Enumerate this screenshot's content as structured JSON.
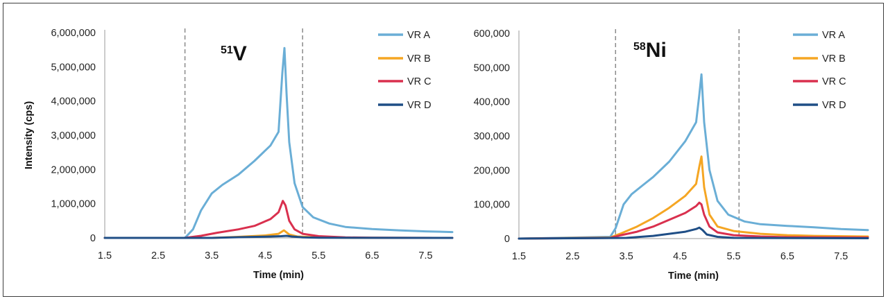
{
  "chart_data": [
    {
      "type": "line",
      "label": {
        "sup": "51",
        "base": "V"
      },
      "xlabel": "Time (min)",
      "ylabel": "Intensity (cps)",
      "xlim": [
        1.5,
        8.0
      ],
      "ylim": [
        0,
        6000000
      ],
      "x_ticks": [
        "1.5",
        "2.5",
        "3.5",
        "4.5",
        "5.5",
        "6.5",
        "7.5"
      ],
      "y_ticks": [
        "0",
        "1,000,000",
        "2,000,000",
        "3,000,000",
        "4,000,000",
        "5,000,000",
        "6,000,000"
      ],
      "dashed_lines_x": [
        3.0,
        5.2
      ],
      "legend_position": "top-right",
      "series": [
        {
          "name": "VR A",
          "color": "#6aaed6",
          "x": [
            1.5,
            3.0,
            3.15,
            3.3,
            3.5,
            3.7,
            4.0,
            4.3,
            4.6,
            4.75,
            4.82,
            4.86,
            4.9,
            4.95,
            5.05,
            5.2,
            5.4,
            5.7,
            6.0,
            6.5,
            7.0,
            7.5,
            8.0
          ],
          "y": [
            0,
            0,
            250000,
            800000,
            1300000,
            1550000,
            1850000,
            2250000,
            2700000,
            3100000,
            4800000,
            5550000,
            4200000,
            2800000,
            1600000,
            900000,
            600000,
            420000,
            320000,
            260000,
            220000,
            190000,
            170000
          ]
        },
        {
          "name": "VR B",
          "color": "#f5a623",
          "x": [
            1.5,
            3.5,
            4.0,
            4.5,
            4.75,
            4.85,
            4.95,
            5.1,
            5.4,
            6.0,
            8.0
          ],
          "y": [
            0,
            0,
            30000,
            70000,
            120000,
            220000,
            100000,
            40000,
            20000,
            5000,
            0
          ]
        },
        {
          "name": "VR C",
          "color": "#d9304e",
          "x": [
            1.5,
            3.0,
            3.3,
            3.6,
            4.0,
            4.3,
            4.6,
            4.75,
            4.83,
            4.88,
            4.95,
            5.05,
            5.2,
            5.5,
            6.0,
            6.5,
            8.0
          ],
          "y": [
            0,
            0,
            60000,
            150000,
            250000,
            350000,
            550000,
            750000,
            1080000,
            950000,
            500000,
            250000,
            120000,
            50000,
            15000,
            5000,
            0
          ]
        },
        {
          "name": "VR D",
          "color": "#1f4e86",
          "x": [
            1.5,
            3.5,
            4.0,
            4.5,
            4.8,
            4.9,
            5.0,
            5.2,
            5.5,
            8.0
          ],
          "y": [
            0,
            0,
            20000,
            35000,
            50000,
            60000,
            40000,
            15000,
            5000,
            0
          ]
        }
      ]
    },
    {
      "type": "line",
      "label": {
        "sup": "58",
        "base": "Ni"
      },
      "xlabel": "Time (min)",
      "ylabel": "",
      "xlim": [
        1.5,
        8.0
      ],
      "ylim": [
        0,
        600000
      ],
      "x_ticks": [
        "1.5",
        "2.5",
        "3.5",
        "4.5",
        "5.5",
        "6.5",
        "7.5"
      ],
      "y_ticks": [
        "0",
        "100,000",
        "200,000",
        "300,000",
        "400,000",
        "500,000",
        "600,000"
      ],
      "dashed_lines_x": [
        3.3,
        5.6
      ],
      "legend_position": "top-right",
      "series": [
        {
          "name": "VR A",
          "color": "#6aaed6",
          "x": [
            1.5,
            3.2,
            3.3,
            3.45,
            3.6,
            3.8,
            4.0,
            4.3,
            4.6,
            4.8,
            4.86,
            4.9,
            4.95,
            5.05,
            5.2,
            5.4,
            5.7,
            6.0,
            6.5,
            7.0,
            7.5,
            8.0
          ],
          "y": [
            0,
            5000,
            30000,
            100000,
            130000,
            155000,
            180000,
            225000,
            285000,
            340000,
            420000,
            480000,
            340000,
            200000,
            110000,
            70000,
            50000,
            42000,
            37000,
            33000,
            28000,
            25000
          ]
        },
        {
          "name": "VR B",
          "color": "#f5a623",
          "x": [
            1.5,
            3.2,
            3.4,
            3.7,
            4.0,
            4.3,
            4.6,
            4.8,
            4.86,
            4.9,
            4.95,
            5.05,
            5.2,
            5.5,
            6.0,
            6.5,
            7.0,
            8.0
          ],
          "y": [
            0,
            3000,
            15000,
            35000,
            60000,
            90000,
            125000,
            160000,
            210000,
            240000,
            150000,
            70000,
            35000,
            22000,
            14000,
            10000,
            8000,
            6000
          ]
        },
        {
          "name": "VR C",
          "color": "#d9304e",
          "x": [
            1.5,
            3.2,
            3.4,
            3.7,
            4.0,
            4.3,
            4.6,
            4.8,
            4.86,
            4.9,
            4.95,
            5.05,
            5.2,
            5.5,
            6.0,
            6.5,
            8.0
          ],
          "y": [
            0,
            2000,
            10000,
            20000,
            35000,
            55000,
            75000,
            95000,
            105000,
            100000,
            70000,
            35000,
            18000,
            10000,
            6000,
            4000,
            3000
          ]
        },
        {
          "name": "VR D",
          "color": "#1f4e86",
          "x": [
            1.5,
            3.5,
            4.0,
            4.3,
            4.6,
            4.8,
            4.86,
            4.92,
            5.0,
            5.2,
            5.5,
            8.0
          ],
          "y": [
            0,
            2000,
            8000,
            14000,
            20000,
            28000,
            32000,
            25000,
            12000,
            5000,
            2000,
            1000
          ]
        }
      ]
    }
  ]
}
